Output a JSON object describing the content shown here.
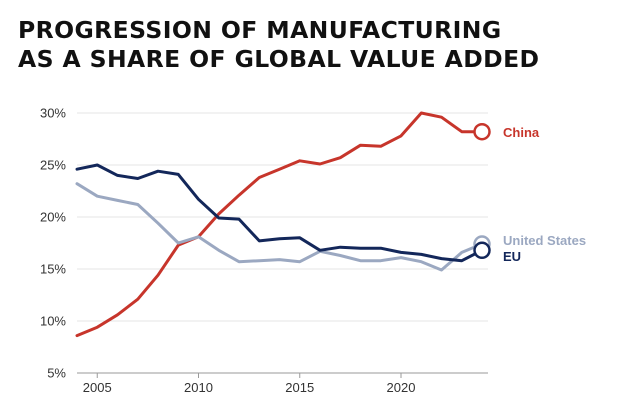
{
  "title_lines": [
    "PROGRESSION OF MANUFACTURING",
    "AS A SHARE OF GLOBAL VALUE ADDED"
  ],
  "chart_data": {
    "type": "line",
    "title": "PROGRESSION OF MANUFACTURING AS A SHARE OF GLOBAL VALUE ADDED",
    "xlim": [
      2004,
      2024
    ],
    "ylim": [
      5,
      30
    ],
    "x_ticks": [
      2005,
      2010,
      2015,
      2020
    ],
    "y_ticks": [
      5,
      10,
      15,
      20,
      25,
      30
    ],
    "x_tick_labels": [
      "2005",
      "2010",
      "2015",
      "2020"
    ],
    "y_tick_labels": [
      "5%",
      "10%",
      "15%",
      "20%",
      "25%",
      "30%"
    ],
    "grid": "horizontal",
    "series": [
      {
        "name": "China",
        "color": "#c7352b",
        "x": [
          2004,
          2005,
          2006,
          2007,
          2008,
          2009,
          2010,
          2011,
          2012,
          2013,
          2014,
          2015,
          2016,
          2017,
          2018,
          2019,
          2020,
          2021,
          2022,
          2023,
          2024
        ],
        "y": [
          8.6,
          9.4,
          10.6,
          12.1,
          14.4,
          17.3,
          18.1,
          20.3,
          22.1,
          23.8,
          24.6,
          25.4,
          25.1,
          25.7,
          26.9,
          26.8,
          27.8,
          30.0,
          29.6,
          28.2,
          28.2
        ],
        "label": "China"
      },
      {
        "name": "United States",
        "color": "#9ba8c1",
        "x": [
          2004,
          2005,
          2006,
          2007,
          2008,
          2009,
          2010,
          2011,
          2012,
          2013,
          2014,
          2015,
          2016,
          2017,
          2018,
          2019,
          2020,
          2021,
          2022,
          2023,
          2024
        ],
        "y": [
          23.2,
          22.0,
          21.6,
          21.2,
          19.4,
          17.5,
          18.1,
          16.8,
          15.7,
          15.8,
          15.9,
          15.7,
          16.7,
          16.3,
          15.8,
          15.8,
          16.1,
          15.7,
          14.9,
          16.6,
          17.4
        ],
        "label": "United States"
      },
      {
        "name": "EU",
        "color": "#13275a",
        "x": [
          2004,
          2005,
          2006,
          2007,
          2008,
          2009,
          2010,
          2011,
          2012,
          2013,
          2014,
          2015,
          2016,
          2017,
          2018,
          2019,
          2020,
          2021,
          2022,
          2023,
          2024
        ],
        "y": [
          24.6,
          25.0,
          24.0,
          23.7,
          24.4,
          24.1,
          21.7,
          19.9,
          19.8,
          17.7,
          17.9,
          18.0,
          16.8,
          17.1,
          17.0,
          17.0,
          16.6,
          16.4,
          16.0,
          15.8,
          16.8
        ],
        "label": "EU"
      }
    ]
  }
}
